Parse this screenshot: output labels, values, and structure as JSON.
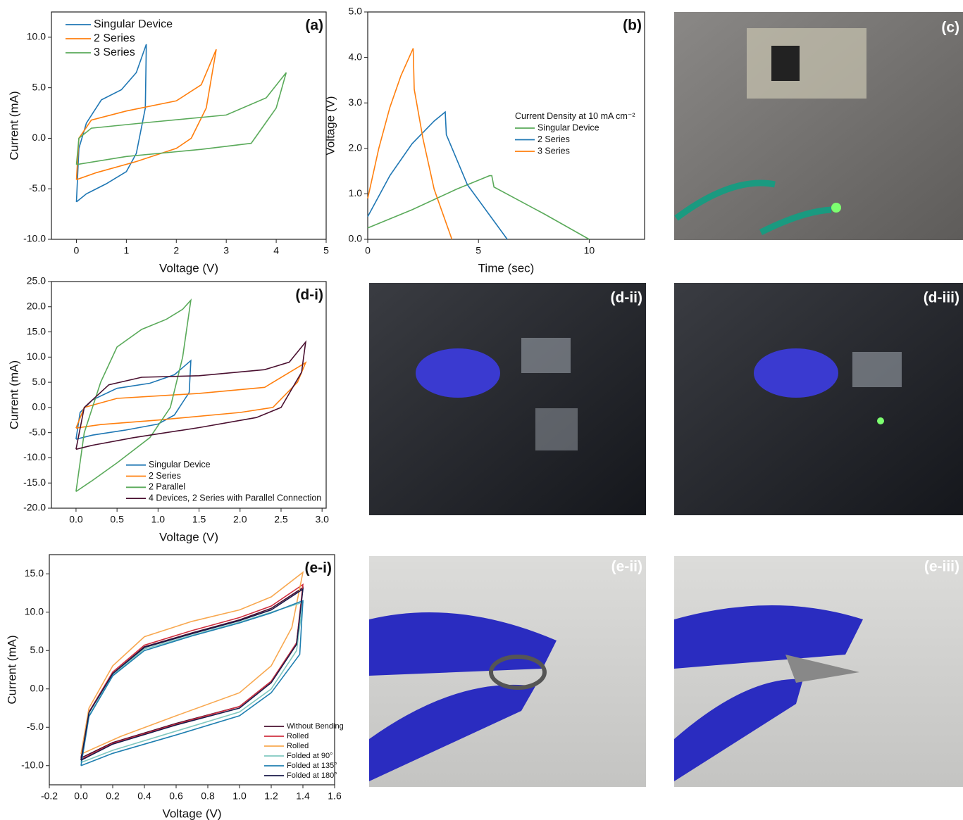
{
  "chart_data": [
    {
      "type": "line",
      "label": "(a)",
      "x_label": "Voltage (V)",
      "y_label": "Current (mA)",
      "xlim": [
        -0.5,
        5
      ],
      "ylim": [
        -10,
        12.5
      ],
      "xticks": [
        0,
        1,
        2,
        3,
        4,
        5
      ],
      "yticks": [
        {
          "value": -10,
          "label": "-10.0"
        },
        {
          "value": -5,
          "label": "-5.0"
        },
        {
          "value": 0,
          "label": "0.0"
        },
        {
          "value": 5,
          "label": "5.0"
        },
        {
          "value": 10,
          "label": "10.0"
        }
      ],
      "legend": "upper left",
      "series": [
        {
          "name": "Singular Device",
          "color": "#1f77b4",
          "x": [
            0,
            0.05,
            0.2,
            0.5,
            0.9,
            1.2,
            1.4,
            1.38,
            1.2,
            1.0,
            0.6,
            0.2,
            0
          ],
          "values": [
            -6.3,
            -1,
            1.5,
            3.8,
            4.8,
            6.5,
            9.3,
            3,
            -1.5,
            -3.3,
            -4.5,
            -5.5,
            -6.3
          ]
        },
        {
          "name": "2 Series",
          "color": "#ff7f0e",
          "x": [
            0,
            0.05,
            0.3,
            1,
            2,
            2.5,
            2.8,
            2.6,
            2.3,
            2.0,
            1.2,
            0.4,
            0
          ],
          "values": [
            -4.1,
            0,
            1.8,
            2.7,
            3.7,
            5.3,
            8.8,
            3,
            0,
            -1,
            -2.3,
            -3.4,
            -4.1
          ]
        },
        {
          "name": "3 Series",
          "color": "#5aaa5a",
          "x": [
            0,
            0.05,
            0.3,
            1.5,
            3,
            3.8,
            4.2,
            4.0,
            3.5,
            2.5,
            1,
            0
          ],
          "values": [
            -2.6,
            0,
            1,
            1.6,
            2.3,
            4,
            6.5,
            3,
            -0.5,
            -1.1,
            -1.8,
            -2.6
          ]
        }
      ]
    },
    {
      "type": "line",
      "label": "(b)",
      "x_label": "Time (sec)",
      "y_label": "Voltage (V)",
      "xlim": [
        0,
        12.5
      ],
      "ylim": [
        0,
        5
      ],
      "xticks": [
        0,
        5,
        10
      ],
      "yticks": [
        {
          "value": 0,
          "label": "0.0"
        },
        {
          "value": 1,
          "label": "1.0"
        },
        {
          "value": 2,
          "label": "2.0"
        },
        {
          "value": 3,
          "label": "3.0"
        },
        {
          "value": 4,
          "label": "4.0"
        },
        {
          "value": 5,
          "label": "5.0"
        }
      ],
      "legend": "center right",
      "legend_title": "Current Density at 10 mA cm⁻²",
      "series": [
        {
          "name": "Singular Device",
          "color": "#5aaa5a",
          "x": [
            0,
            2,
            4,
            5.5,
            5.6,
            5.7,
            8,
            10
          ],
          "values": [
            0.25,
            0.65,
            1.1,
            1.4,
            1.4,
            1.15,
            0.55,
            0
          ]
        },
        {
          "name": "2 Series",
          "color": "#1f77b4",
          "x": [
            0,
            1,
            2,
            3,
            3.5,
            3.55,
            4.5,
            6.3
          ],
          "values": [
            0.5,
            1.4,
            2.1,
            2.6,
            2.8,
            2.3,
            1.2,
            0
          ]
        },
        {
          "name": "3 Series",
          "color": "#ff7f0e",
          "x": [
            0,
            0.5,
            1,
            1.5,
            2.05,
            2.1,
            2.5,
            3.0,
            3.8
          ],
          "values": [
            0.9,
            2,
            2.9,
            3.6,
            4.2,
            3.3,
            2.2,
            1.1,
            0
          ]
        }
      ]
    },
    {
      "type": "line",
      "label": "(d-i)",
      "x_label": "Voltage (V)",
      "y_label": "Current (mA)",
      "xlim": [
        -0.3,
        3.05
      ],
      "ylim": [
        -20,
        25
      ],
      "xticks": [
        {
          "value": 0,
          "label": "0.0"
        },
        0.5,
        {
          "value": 1,
          "label": "1.0"
        },
        1.5,
        {
          "value": 2,
          "label": "2.0"
        },
        2.5,
        {
          "value": 3,
          "label": "3.0"
        }
      ],
      "yticks": [
        {
          "value": -20,
          "label": "-20.0"
        },
        {
          "value": -15,
          "label": "-15.0"
        },
        {
          "value": -10,
          "label": "-10.0"
        },
        {
          "value": -5,
          "label": "-5.0"
        },
        {
          "value": 0,
          "label": "0.0"
        },
        {
          "value": 5,
          "label": "5.0"
        },
        {
          "value": 10,
          "label": "10.0"
        },
        {
          "value": 15,
          "label": "15.0"
        },
        {
          "value": 20,
          "label": "20.0"
        },
        {
          "value": 25,
          "label": "25.0"
        }
      ],
      "legend": "lower right",
      "series": [
        {
          "name": "Singular Device",
          "color": "#1f77b4",
          "x": [
            0,
            0.05,
            0.2,
            0.5,
            0.9,
            1.2,
            1.4,
            1.38,
            1.2,
            1.0,
            0.6,
            0.2,
            0
          ],
          "values": [
            -6.3,
            -1,
            1.5,
            3.8,
            4.8,
            6.5,
            9.3,
            3,
            -1.5,
            -3.3,
            -4.5,
            -5.5,
            -6.3
          ]
        },
        {
          "name": "2 Series",
          "color": "#ff7f0e",
          "x": [
            0,
            0.1,
            0.5,
            1.5,
            2.3,
            2.8,
            2.7,
            2.4,
            2,
            1,
            0.3,
            0
          ],
          "values": [
            -4.1,
            0,
            1.8,
            2.8,
            4,
            8.9,
            5,
            0,
            -1,
            -2.5,
            -3.4,
            -4.1
          ]
        },
        {
          "name": "2 Parallel",
          "color": "#5aaa5a",
          "x": [
            0,
            0.1,
            0.3,
            0.5,
            0.8,
            1.1,
            1.3,
            1.4,
            1.3,
            1.15,
            0.9,
            0.5,
            0.2,
            0
          ],
          "values": [
            -16.7,
            -5,
            5,
            12,
            15.5,
            17.5,
            19.5,
            21.3,
            10,
            0,
            -6,
            -11,
            -14.5,
            -16.7
          ]
        },
        {
          "name": "4 Devices, 2 Series with Parallel Connection",
          "color": "#4a1030",
          "x": [
            0,
            0.1,
            0.4,
            0.8,
            1.5,
            2.3,
            2.6,
            2.8,
            2.75,
            2.5,
            2.2,
            1.5,
            0.7,
            0.2,
            0
          ],
          "values": [
            -8.3,
            0,
            4.5,
            6,
            6.3,
            7.5,
            9,
            13,
            7,
            0,
            -2,
            -4,
            -6,
            -7.5,
            -8.3
          ]
        }
      ]
    },
    {
      "type": "line",
      "label": "(e-i)",
      "x_label": "Voltage (V)",
      "y_label": "Current (mA)",
      "xlim": [
        -0.2,
        1.6
      ],
      "ylim": [
        -12.5,
        17.5
      ],
      "xticks": [
        -0.2,
        {
          "value": 0,
          "label": "0.0"
        },
        0.2,
        0.4,
        0.6,
        0.8,
        {
          "value": 1,
          "label": "1.0"
        },
        1.2,
        1.4,
        1.6
      ],
      "yticks": [
        {
          "value": -10,
          "label": "-10.0"
        },
        {
          "value": -5,
          "label": "-5.0"
        },
        {
          "value": 0,
          "label": "0.0"
        },
        {
          "value": 5,
          "label": "5.0"
        },
        {
          "value": 10,
          "label": "10.0"
        },
        {
          "value": 15,
          "label": "15.0"
        }
      ],
      "legend": "lower right",
      "series": [
        {
          "name": "Without Bending",
          "color": "#4a1030",
          "x": [
            0,
            0.05,
            0.2,
            0.4,
            0.7,
            1.0,
            1.2,
            1.4,
            1.36,
            1.2,
            1.0,
            0.6,
            0.2,
            0
          ],
          "values": [
            -9,
            -3,
            2,
            5.5,
            7.3,
            9,
            10.5,
            13.2,
            6,
            1,
            -2.3,
            -4.5,
            -7,
            -9
          ]
        },
        {
          "name": "Rolled",
          "color": "#d03040",
          "x": [
            0,
            0.05,
            0.2,
            0.4,
            0.7,
            1.0,
            1.2,
            1.4,
            1.36,
            1.2,
            1.0,
            0.6,
            0.2,
            0
          ],
          "values": [
            -9.2,
            -3,
            2.2,
            5.7,
            7.6,
            9.3,
            10.8,
            13.6,
            6,
            1,
            -2.3,
            -4.6,
            -7.1,
            -9.2
          ]
        },
        {
          "name": "Rolled",
          "color": "#f8a850",
          "x": [
            0,
            0.05,
            0.2,
            0.4,
            0.7,
            1.0,
            1.2,
            1.4,
            1.33,
            1.2,
            1.0,
            0.6,
            0.25,
            0
          ],
          "values": [
            -8.5,
            -2.5,
            3,
            6.8,
            8.8,
            10.3,
            12,
            15.2,
            8,
            3,
            -0.5,
            -3.5,
            -6.2,
            -8.5
          ]
        },
        {
          "name": "Folded at 90°",
          "color": "#80c8c0",
          "x": [
            0,
            0.05,
            0.2,
            0.4,
            0.7,
            1.0,
            1.2,
            1.4,
            1.36,
            1.2,
            1.0,
            0.6,
            0.2,
            0
          ],
          "values": [
            -9.6,
            -3.5,
            1.8,
            5.2,
            7,
            8.7,
            10,
            11.3,
            5,
            0,
            -3,
            -5.5,
            -8,
            -9.6
          ]
        },
        {
          "name": "Folded at 135°",
          "color": "#1f7fb0",
          "x": [
            0,
            0.05,
            0.2,
            0.4,
            0.7,
            1.0,
            1.2,
            1.4,
            1.38,
            1.2,
            1.0,
            0.6,
            0.2,
            0
          ],
          "values": [
            -10,
            -3.6,
            1.7,
            5,
            6.9,
            8.6,
            9.9,
            11.5,
            4.5,
            -0.5,
            -3.5,
            -6,
            -8.4,
            -10
          ]
        },
        {
          "name": "Folded at 180°",
          "color": "#1a1a4a",
          "x": [
            0,
            0.05,
            0.2,
            0.4,
            0.7,
            1.0,
            1.2,
            1.4,
            1.36,
            1.2,
            1.0,
            0.6,
            0.2,
            0
          ],
          "values": [
            -9.3,
            -3.1,
            2,
            5.4,
            7.2,
            8.9,
            10.3,
            13,
            5.8,
            0.8,
            -2.5,
            -4.7,
            -7.2,
            -9.3
          ]
        }
      ]
    }
  ],
  "photos": [
    {
      "label": "(c)"
    },
    {
      "label": "(d-ii)"
    },
    {
      "label": "(d-iii)"
    },
    {
      "label": "(e-ii)"
    },
    {
      "label": "(e-iii)"
    }
  ]
}
